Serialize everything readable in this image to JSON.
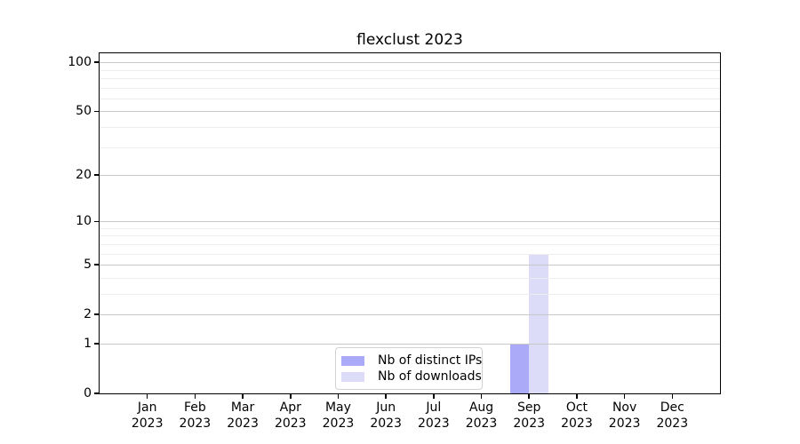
{
  "title": "flexclust 2023",
  "chart_data": {
    "type": "bar",
    "title": "flexclust 2023",
    "categories": [
      "Jan",
      "Feb",
      "Mar",
      "Apr",
      "May",
      "Jun",
      "Jul",
      "Aug",
      "Sep",
      "Oct",
      "Nov",
      "Dec"
    ],
    "year": "2023",
    "series": [
      {
        "name": "Nb of distinct IPs",
        "color": "#aaaaf8",
        "values": [
          0,
          0,
          0,
          0,
          0,
          0,
          0,
          0,
          1,
          0,
          0,
          0
        ]
      },
      {
        "name": "Nb of downloads",
        "color": "#dcdcf8",
        "values": [
          0,
          0,
          0,
          0,
          0,
          0,
          0,
          0,
          6,
          0,
          0,
          0
        ]
      }
    ],
    "xlabel": "",
    "ylabel": "",
    "yscale": "log1p",
    "ylim": [
      0,
      100
    ],
    "yticks": [
      0,
      1,
      2,
      5,
      10,
      20,
      50,
      100
    ],
    "minor_gridlines": [
      3,
      4,
      6,
      7,
      8,
      9,
      30,
      40,
      60,
      70,
      80,
      90
    ],
    "grid": true,
    "legend_position": "bottom-center",
    "colors": {
      "axis": "#000000",
      "major_grid": "#c8c8c8",
      "minor_grid": "#ededed",
      "background": "#ffffff"
    }
  }
}
